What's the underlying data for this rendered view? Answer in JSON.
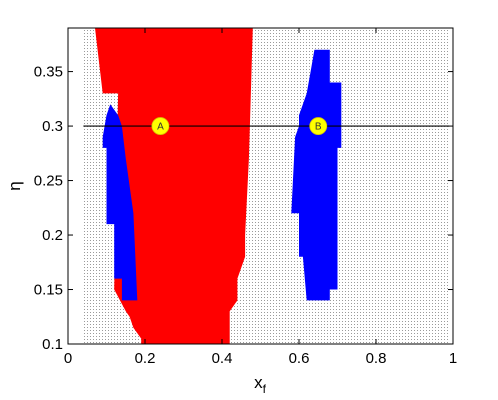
{
  "chart_data": {
    "type": "scatter",
    "title": "",
    "xlabel": "x",
    "xlabel_subscript": "f",
    "ylabel": "η",
    "xlim": [
      0,
      1
    ],
    "ylim": [
      0.1,
      0.39
    ],
    "xticks": [
      0,
      0.2,
      0.4,
      0.6,
      0.8,
      1
    ],
    "xtick_labels": [
      "0",
      "0.2",
      "0.4",
      "0.6",
      "0.8",
      "1"
    ],
    "yticks": [
      0.1,
      0.15,
      0.2,
      0.25,
      0.3,
      0.35
    ],
    "ytick_labels": [
      "0.1",
      "0.15",
      "0.2",
      "0.25",
      "0.3",
      "0.35"
    ],
    "grid": true,
    "colors": {
      "red_region": "#ff0000",
      "blue_region": "#0000ff",
      "marker": "#ffff00",
      "line": "#000000",
      "dots": "#9a9a9a"
    },
    "dotted_region": {
      "x": [
        0.04,
        0.99
      ],
      "y": [
        0.1,
        0.39
      ]
    },
    "regions": [
      {
        "color": "red",
        "polygon": [
          [
            0.07,
            0.39
          ],
          [
            0.48,
            0.39
          ],
          [
            0.47,
            0.27
          ],
          [
            0.46,
            0.2
          ],
          [
            0.46,
            0.18
          ],
          [
            0.44,
            0.16
          ],
          [
            0.44,
            0.14
          ],
          [
            0.42,
            0.13
          ],
          [
            0.42,
            0.1
          ],
          [
            0.19,
            0.1
          ],
          [
            0.19,
            0.105
          ],
          [
            0.17,
            0.115
          ],
          [
            0.16,
            0.125
          ],
          [
            0.15,
            0.13
          ],
          [
            0.12,
            0.15
          ],
          [
            0.13,
            0.33
          ],
          [
            0.09,
            0.33
          ]
        ]
      },
      {
        "color": "blue",
        "polygon": [
          [
            0.1,
            0.21
          ],
          [
            0.12,
            0.21
          ],
          [
            0.12,
            0.16
          ],
          [
            0.14,
            0.16
          ],
          [
            0.14,
            0.14
          ],
          [
            0.18,
            0.14
          ],
          [
            0.17,
            0.22
          ],
          [
            0.15,
            0.27
          ],
          [
            0.14,
            0.3
          ],
          [
            0.13,
            0.31
          ],
          [
            0.11,
            0.32
          ],
          [
            0.1,
            0.31
          ],
          [
            0.09,
            0.29
          ],
          [
            0.09,
            0.28
          ],
          [
            0.1,
            0.28
          ]
        ]
      },
      {
        "color": "blue",
        "polygon": [
          [
            0.64,
            0.37
          ],
          [
            0.68,
            0.37
          ],
          [
            0.68,
            0.34
          ],
          [
            0.71,
            0.34
          ],
          [
            0.71,
            0.28
          ],
          [
            0.7,
            0.28
          ],
          [
            0.7,
            0.15
          ],
          [
            0.68,
            0.15
          ],
          [
            0.68,
            0.14
          ],
          [
            0.62,
            0.14
          ],
          [
            0.61,
            0.18
          ],
          [
            0.6,
            0.18
          ],
          [
            0.6,
            0.22
          ],
          [
            0.58,
            0.22
          ],
          [
            0.59,
            0.29
          ],
          [
            0.6,
            0.3
          ],
          [
            0.6,
            0.31
          ],
          [
            0.62,
            0.33
          ],
          [
            0.63,
            0.35
          ]
        ]
      }
    ],
    "line": {
      "x": [
        0.04,
        0.99
      ],
      "y": [
        0.3,
        0.3
      ]
    },
    "points": [
      {
        "label": "A",
        "x": 0.24,
        "y": 0.3
      },
      {
        "label": "B",
        "x": 0.65,
        "y": 0.3
      }
    ]
  }
}
